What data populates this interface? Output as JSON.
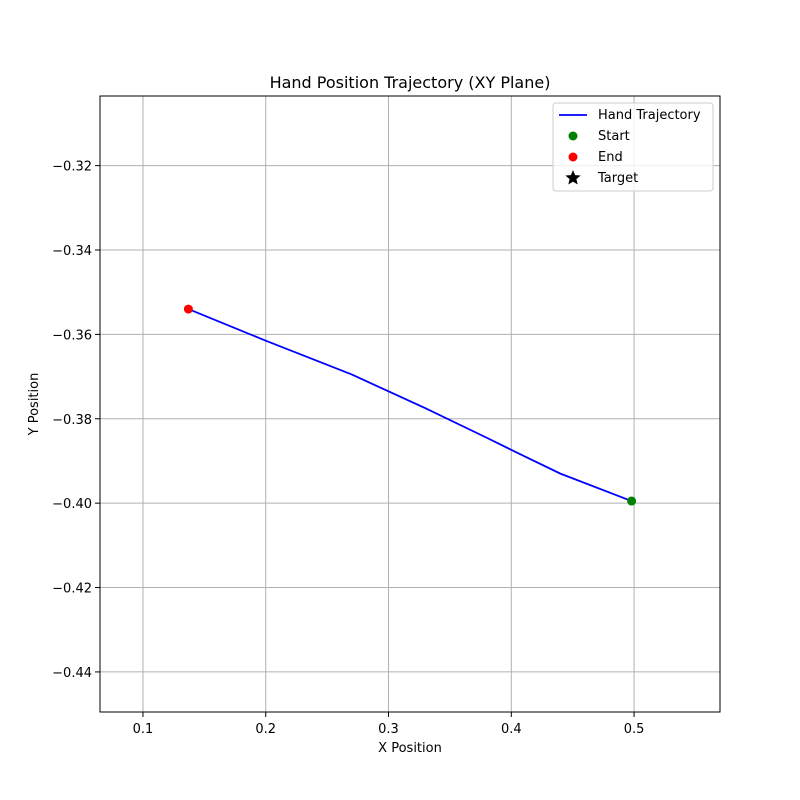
{
  "chart_data": {
    "type": "line",
    "title": "Hand Position Trajectory (XY Plane)",
    "xlabel": "X Position",
    "ylabel": "Y Position",
    "xlim": [
      0.065,
      0.57
    ],
    "ylim": [
      -0.4495,
      -0.3035
    ],
    "x_ticks": [
      0.1,
      0.2,
      0.3,
      0.4,
      0.5
    ],
    "x_tick_labels": [
      "0.1",
      "0.2",
      "0.3",
      "0.4",
      "0.5"
    ],
    "y_ticks": [
      -0.32,
      -0.34,
      -0.36,
      -0.38,
      -0.4,
      -0.42,
      -0.44
    ],
    "y_tick_labels": [
      "−0.32",
      "−0.34",
      "−0.36",
      "−0.38",
      "−0.40",
      "−0.42",
      "−0.44"
    ],
    "grid": true,
    "legend_position": "top-right",
    "series": [
      {
        "name": "Hand Trajectory",
        "kind": "line",
        "color": "#0000ff",
        "x": [
          0.498,
          0.44,
          0.415,
          0.38,
          0.33,
          0.27,
          0.2,
          0.137
        ],
        "y": [
          -0.3995,
          -0.393,
          -0.3895,
          -0.3845,
          -0.3775,
          -0.3695,
          -0.3615,
          -0.354
        ]
      },
      {
        "name": "Start",
        "kind": "point",
        "color": "#008000",
        "x": [
          0.498
        ],
        "y": [
          -0.3995
        ]
      },
      {
        "name": "End",
        "kind": "point",
        "color": "#ff0000",
        "x": [
          0.137
        ],
        "y": [
          -0.354
        ]
      },
      {
        "name": "Target",
        "kind": "star",
        "color": "#000000",
        "x": [],
        "y": []
      }
    ]
  }
}
